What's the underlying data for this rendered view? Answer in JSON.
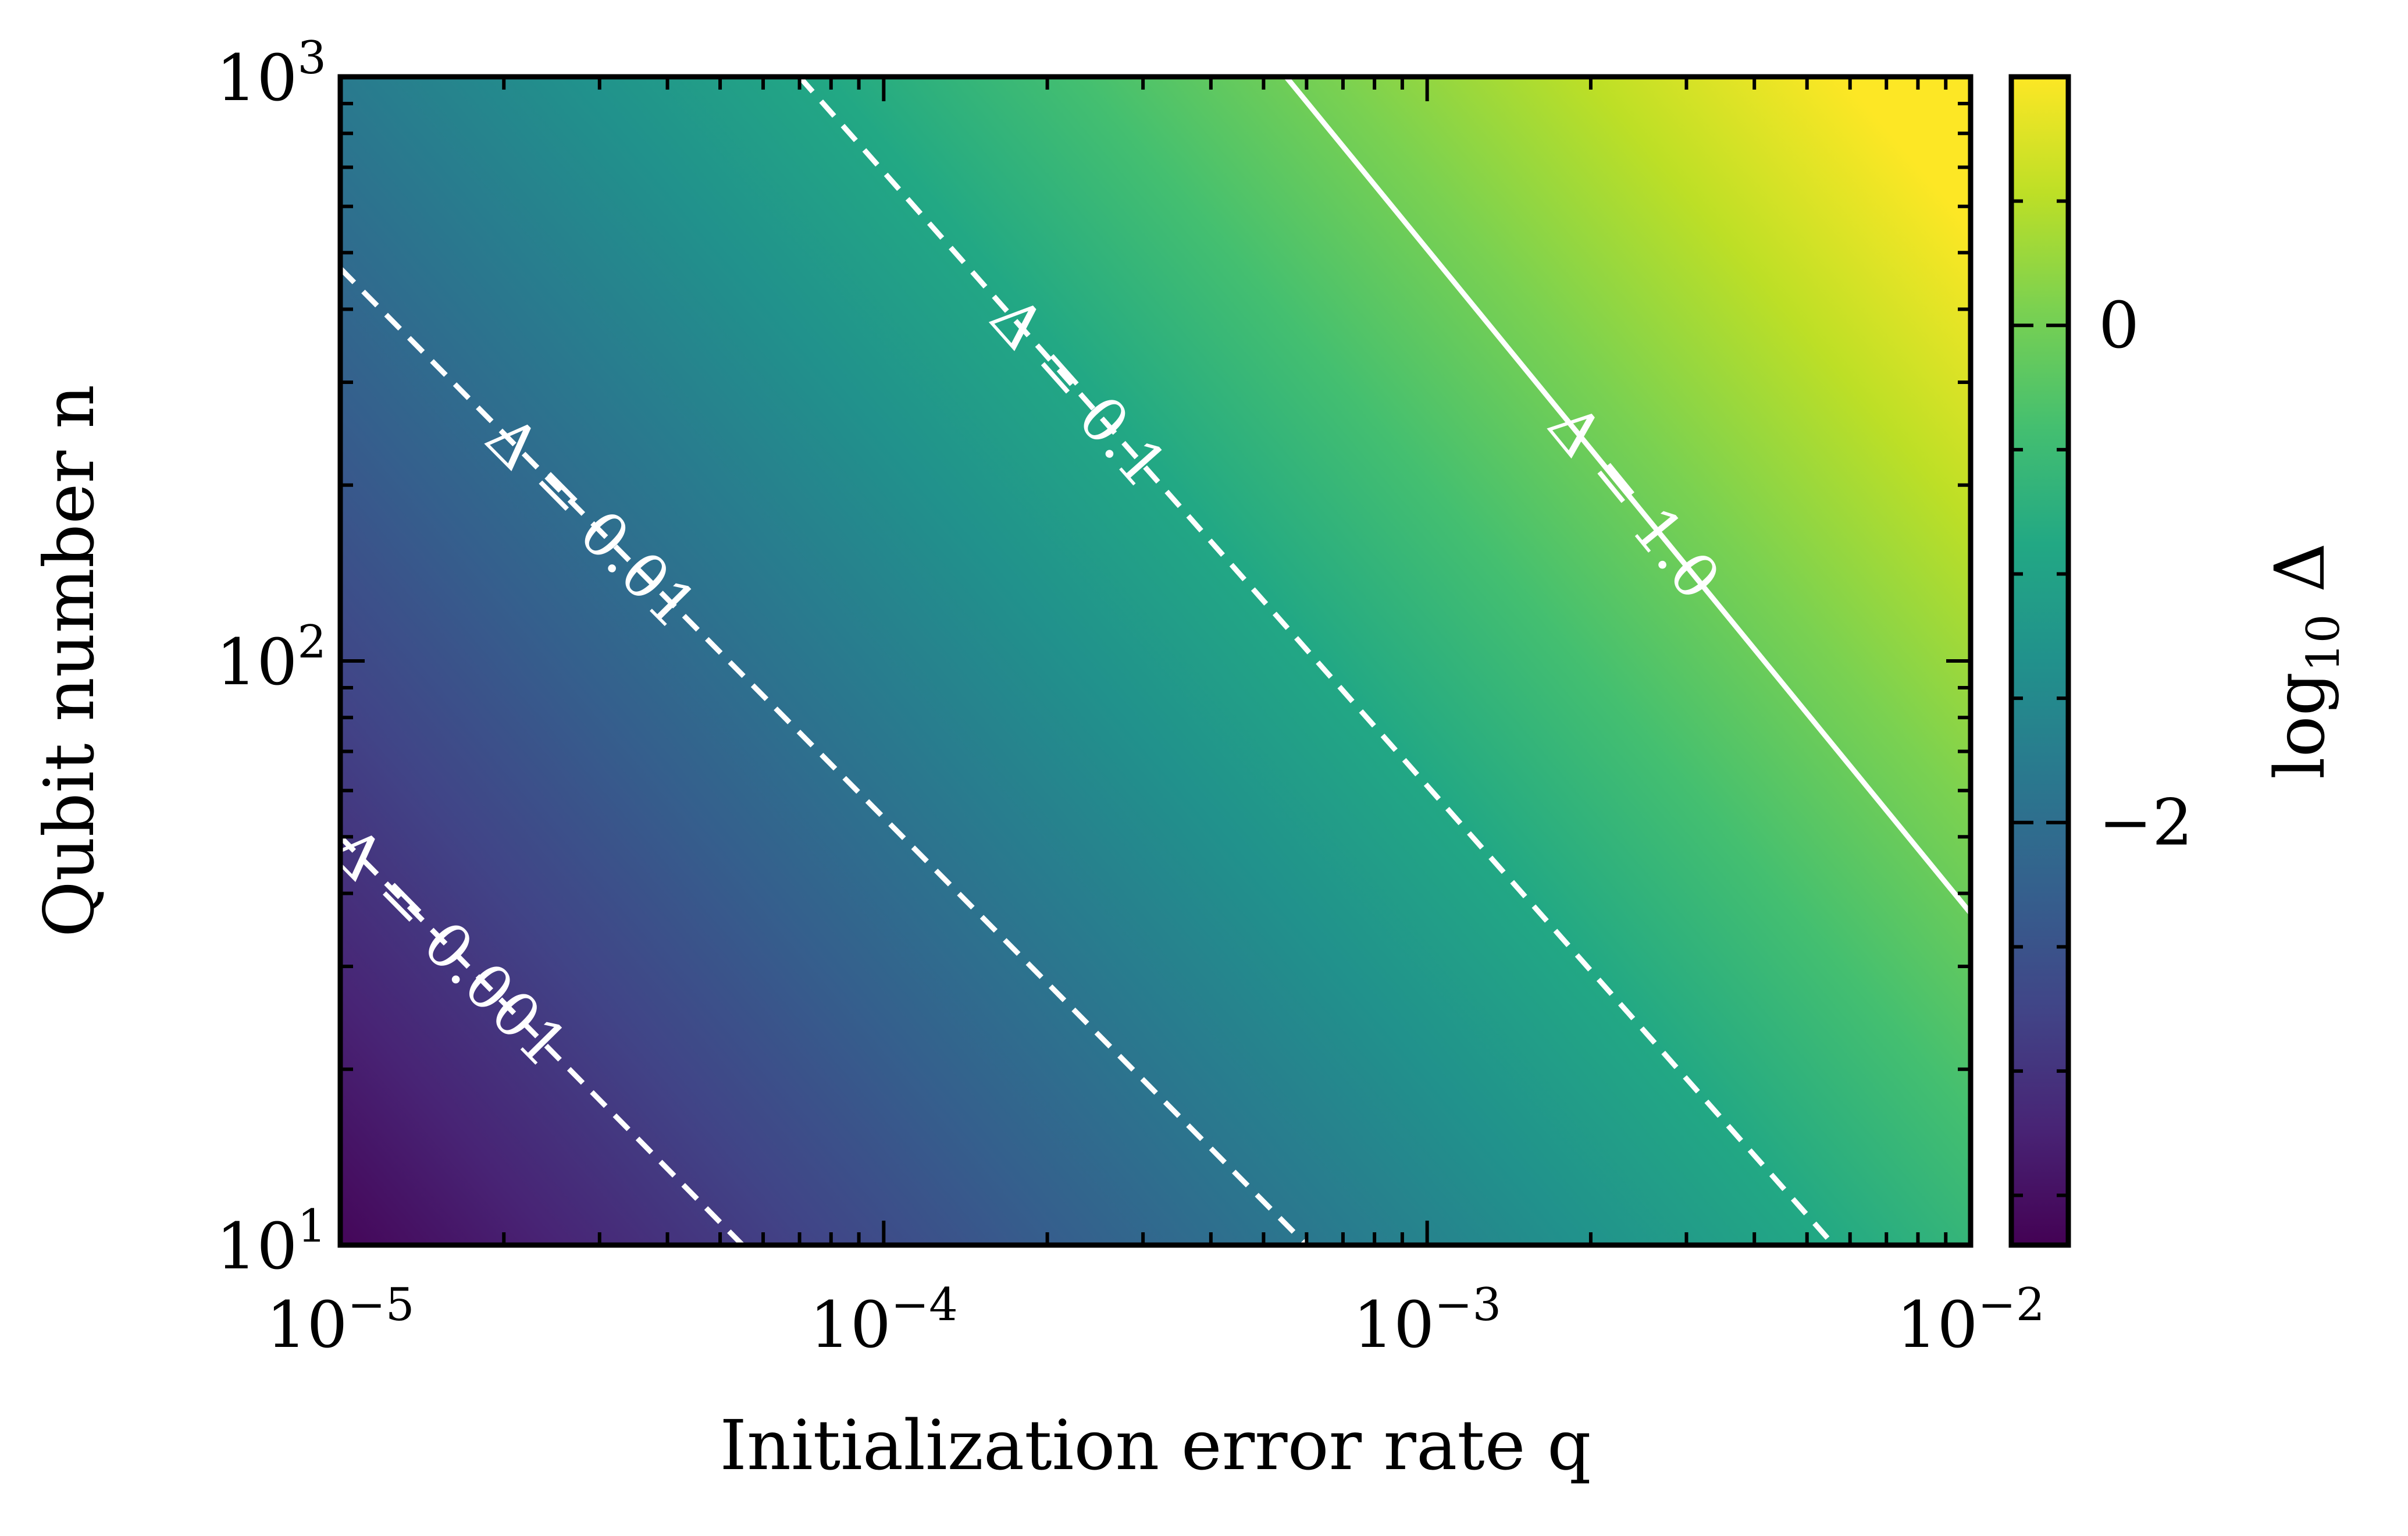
{
  "chart_data": {
    "type": "heatmap",
    "title": "",
    "xlabel": "Initialization error rate q",
    "ylabel": "Qubit number n",
    "x_scale": "log",
    "y_scale": "log",
    "xlim": [
      1e-05,
      0.01
    ],
    "ylim": [
      10,
      1000
    ],
    "x_ticks": [
      {
        "value": 1e-05,
        "base": "10",
        "exp": "−5"
      },
      {
        "value": 0.0001,
        "base": "10",
        "exp": "−4"
      },
      {
        "value": 0.001,
        "base": "10",
        "exp": "−3"
      },
      {
        "value": 0.01,
        "base": "10",
        "exp": "−2"
      }
    ],
    "y_ticks": [
      {
        "value": 10,
        "base": "10",
        "exp": "1"
      },
      {
        "value": 100,
        "base": "10",
        "exp": "2"
      },
      {
        "value": 1000,
        "base": "10",
        "exp": "3"
      }
    ],
    "colormap": "viridis",
    "colorbar": {
      "label": "log10 Δ",
      "label_base": "log",
      "label_sub": "10",
      "label_symbol": "Δ",
      "range": [
        -3.7,
        1.0
      ],
      "ticks": [
        {
          "value": 0,
          "label": "0"
        },
        {
          "value": -2,
          "label": "−2"
        }
      ]
    },
    "contours": [
      {
        "level": 0.001,
        "label": "Δ = 0.001",
        "style": "dashed",
        "points": [
          [
            1e-05,
            50
          ],
          [
            5.5e-05,
            10
          ]
        ]
      },
      {
        "level": 0.01,
        "label": "Δ = 0.01",
        "style": "dashed",
        "points": [
          [
            1e-05,
            470
          ],
          [
            0.0006,
            10
          ]
        ]
      },
      {
        "level": 0.1,
        "label": "Δ = 0.1",
        "style": "dashed",
        "points": [
          [
            7e-05,
            1000
          ],
          [
            0.0056,
            10
          ]
        ]
      },
      {
        "level": 1.0,
        "label": "Δ = 1.0",
        "style": "solid",
        "points": [
          [
            0.00055,
            1000
          ],
          [
            0.0105,
            35
          ]
        ]
      }
    ]
  }
}
